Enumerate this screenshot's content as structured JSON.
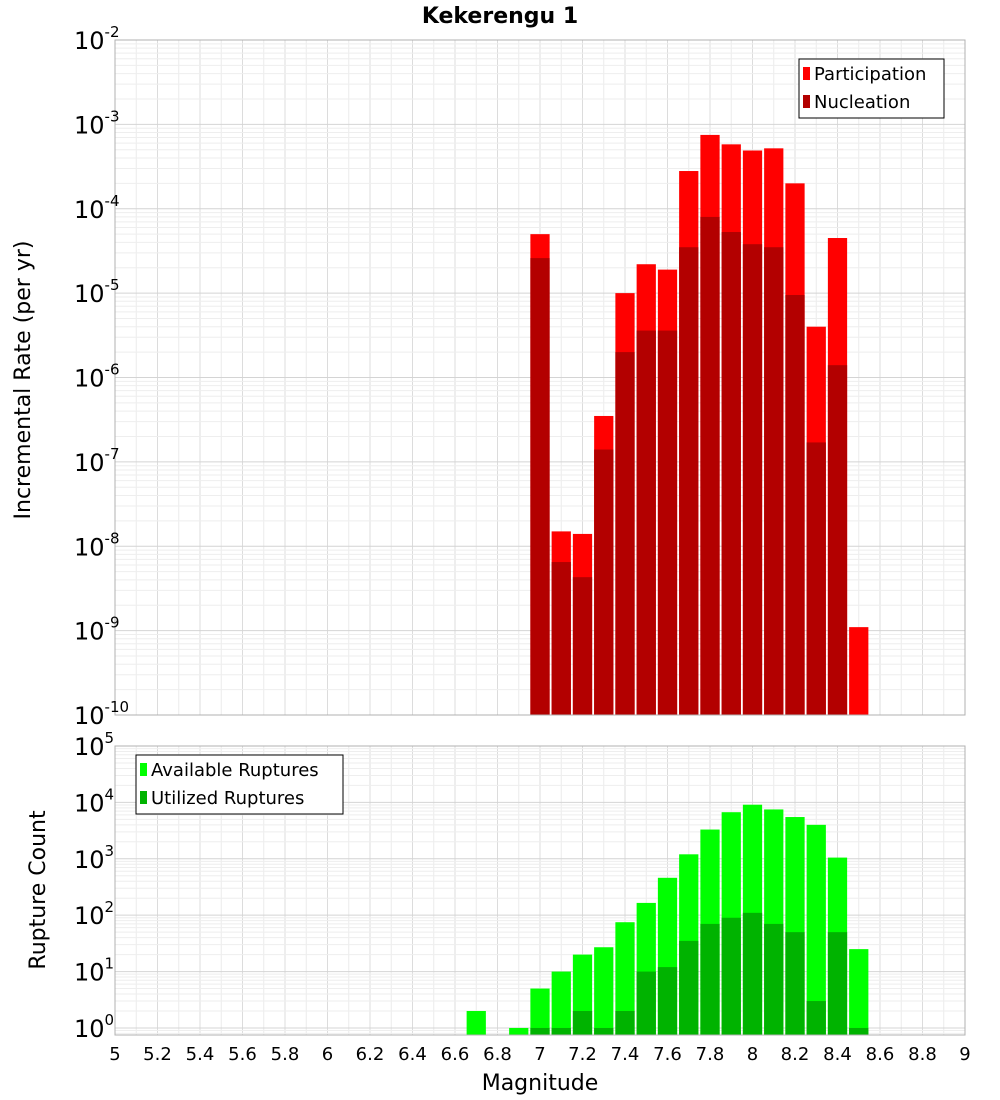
{
  "chart_data": [
    {
      "type": "bar",
      "title": "Kekerengu 1",
      "ylabel": "Incremental Rate (per yr)",
      "yscale": "log",
      "ylim": [
        1e-10,
        0.01
      ],
      "xlim": [
        5,
        9
      ],
      "y_ticks": [
        {
          "base": "10",
          "exp": "-10"
        },
        {
          "base": "10",
          "exp": "-9"
        },
        {
          "base": "10",
          "exp": "-8"
        },
        {
          "base": "10",
          "exp": "-7"
        },
        {
          "base": "10",
          "exp": "-6"
        },
        {
          "base": "10",
          "exp": "-5"
        },
        {
          "base": "10",
          "exp": "-4"
        },
        {
          "base": "10",
          "exp": "-3"
        },
        {
          "base": "10",
          "exp": "-2"
        }
      ],
      "legend": {
        "position": "top-right",
        "entries": [
          {
            "label": "Participation",
            "color": "#ff0000"
          },
          {
            "label": "Nucleation",
            "color": "#b30000"
          }
        ]
      },
      "series": [
        {
          "name": "Participation",
          "color": "#ff0000",
          "x": [
            7.0,
            7.1,
            7.2,
            7.3,
            7.4,
            7.5,
            7.6,
            7.7,
            7.8,
            7.9,
            8.0,
            8.1,
            8.2,
            8.3,
            8.4,
            8.5
          ],
          "values": [
            5e-05,
            1.5e-08,
            1.4e-08,
            3.5e-07,
            1e-05,
            2.2e-05,
            1.9e-05,
            0.00028,
            0.00075,
            0.00058,
            0.00049,
            0.00052,
            0.0002,
            4e-06,
            4.5e-05,
            1.1e-09
          ]
        },
        {
          "name": "Nucleation",
          "color": "#b30000",
          "x": [
            7.0,
            7.1,
            7.2,
            7.3,
            7.4,
            7.5,
            7.6,
            7.7,
            7.8,
            7.9,
            8.0,
            8.1,
            8.2,
            8.3,
            8.4
          ],
          "values": [
            2.6e-05,
            6.5e-09,
            4.3e-09,
            1.4e-07,
            2e-06,
            3.6e-06,
            3.6e-06,
            3.5e-05,
            8e-05,
            5.3e-05,
            3.8e-05,
            3.5e-05,
            9.5e-06,
            1.7e-07,
            1.4e-06
          ]
        }
      ]
    },
    {
      "type": "bar",
      "xlabel": "Magnitude",
      "ylabel": "Rupture Count",
      "yscale": "log",
      "ylim": [
        0.75,
        100000.0
      ],
      "xlim": [
        5,
        9
      ],
      "x_ticks": [
        "5",
        "5.2",
        "5.4",
        "5.6",
        "5.8",
        "6",
        "6.2",
        "6.4",
        "6.6",
        "6.8",
        "7",
        "7.2",
        "7.4",
        "7.6",
        "7.8",
        "8",
        "8.2",
        "8.4",
        "8.6",
        "8.8",
        "9"
      ],
      "y_ticks": [
        {
          "base": "10",
          "exp": "0"
        },
        {
          "base": "10",
          "exp": "1"
        },
        {
          "base": "10",
          "exp": "2"
        },
        {
          "base": "10",
          "exp": "3"
        },
        {
          "base": "10",
          "exp": "4"
        },
        {
          "base": "10",
          "exp": "5"
        }
      ],
      "legend": {
        "position": "top-left",
        "entries": [
          {
            "label": "Available Ruptures",
            "color": "#00ff00"
          },
          {
            "label": "Utilized Ruptures",
            "color": "#00b300"
          }
        ]
      },
      "series": [
        {
          "name": "Available Ruptures",
          "color": "#00ff00",
          "x": [
            6.7,
            6.9,
            7.0,
            7.1,
            7.2,
            7.3,
            7.4,
            7.5,
            7.6,
            7.7,
            7.8,
            7.9,
            8.0,
            8.1,
            8.2,
            8.3,
            8.4,
            8.5
          ],
          "values": [
            2,
            1,
            5,
            10,
            20,
            27,
            75,
            165,
            460,
            1200,
            3300,
            6700,
            9100,
            7500,
            5500,
            4000,
            1050,
            25
          ]
        },
        {
          "name": "Utilized Ruptures",
          "color": "#00b300",
          "x": [
            7.0,
            7.1,
            7.2,
            7.3,
            7.4,
            7.5,
            7.6,
            7.7,
            7.8,
            7.9,
            8.0,
            8.1,
            8.2,
            8.3,
            8.4,
            8.5
          ],
          "values": [
            1,
            1,
            2,
            1,
            2,
            10,
            12,
            35,
            70,
            90,
            110,
            70,
            50,
            3,
            50,
            1
          ]
        }
      ]
    }
  ]
}
